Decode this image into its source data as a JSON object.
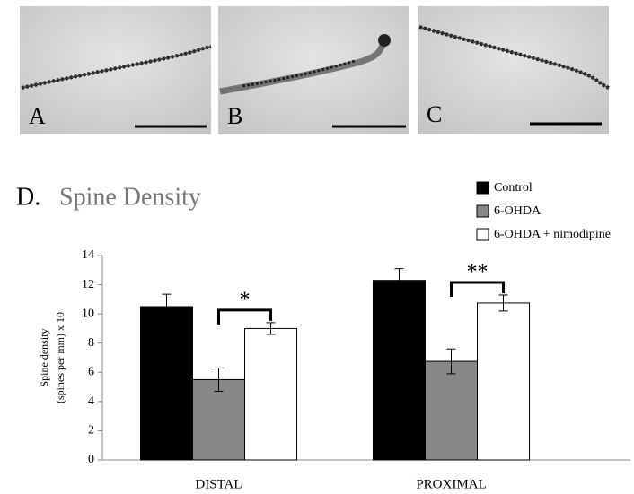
{
  "panels": [
    {
      "label": "A"
    },
    {
      "label": "B"
    },
    {
      "label": "C"
    }
  ],
  "chart_data": {
    "type": "bar",
    "panel_label": "D.",
    "title": "Spine Density",
    "y_label": [
      "Spine density",
      "(spines per mm) x 10"
    ],
    "categories": [
      "DISTAL",
      "PROXIMAL"
    ],
    "series": [
      {
        "name": "Control",
        "color": "#000000",
        "values": [
          10.5,
          12.3
        ],
        "errors": [
          0.85,
          0.8
        ]
      },
      {
        "name": "6-OHDA",
        "color": "#888888",
        "values": [
          5.5,
          6.75
        ],
        "errors": [
          0.8,
          0.85
        ]
      },
      {
        "name": "6-OHDA + nimodipine",
        "color": "#ffffff",
        "values": [
          9.0,
          10.75
        ],
        "errors": [
          0.4,
          0.55
        ]
      }
    ],
    "significance": [
      "*",
      "**"
    ],
    "ylim": [
      0,
      14
    ],
    "yticks": [
      0,
      2,
      4,
      6,
      8,
      10,
      12,
      14
    ]
  }
}
